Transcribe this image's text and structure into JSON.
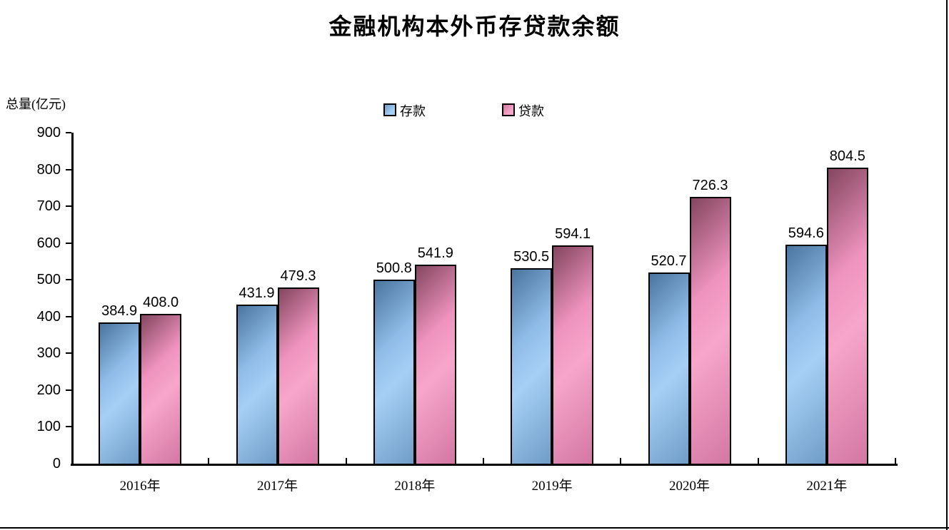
{
  "page": {
    "right_edge_border_color": "#000000",
    "bottom_edge_border_color": "#000000"
  },
  "chart_data": {
    "type": "bar",
    "title": "金融机构本外币存贷款余额",
    "ylabel": "总量(亿元)",
    "xlabel": "",
    "categories": [
      "2016年",
      "2017年",
      "2018年",
      "2019年",
      "2020年",
      "2021年"
    ],
    "series": [
      {
        "name": "存款",
        "color_light": "#A6CFF5",
        "color_dark": "#49759F",
        "values": [
          384.9,
          431.9,
          500.8,
          530.5,
          520.7,
          594.6
        ]
      },
      {
        "name": "贷款",
        "color_light": "#F7A6CA",
        "color_dark": "#84465F",
        "values": [
          408.0,
          479.3,
          541.9,
          594.1,
          726.3,
          804.5
        ]
      }
    ],
    "ylim": [
      0,
      900
    ],
    "ytick_step": 100,
    "yticks": [
      0,
      100,
      200,
      300,
      400,
      500,
      600,
      700,
      800,
      900
    ],
    "value_label_decimals": 1,
    "legend_position": "top-center",
    "grid": false,
    "bar_border_color": "#000000",
    "axis_color": "#000000"
  }
}
